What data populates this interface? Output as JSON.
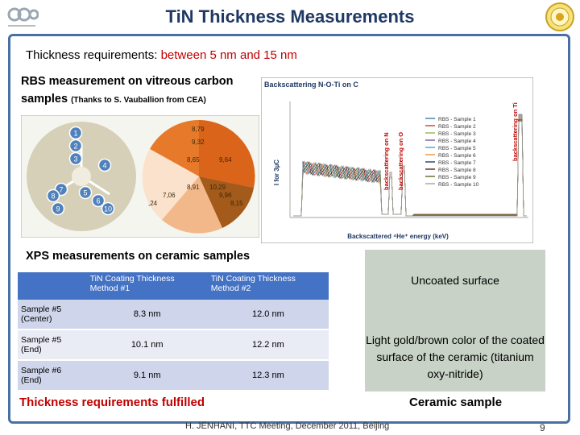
{
  "slide": {
    "title": "TiN Thickness Measurements",
    "requirement_prefix": "Thickness requirements: ",
    "requirement_value": "between 5 nm and 15 nm",
    "rbs_heading": "RBS measurement on vitreous carbon samples",
    "rbs_credit": "(Thanks to S. Vauballion from CEA)",
    "xps_heading": "XPS measurements on ceramic samples",
    "fulfilled": "Thickness requirements fulfilled",
    "footer": "H. JENHANI, TTC Meeting, December 2011, Beijing",
    "page": "9"
  },
  "sample_diagram": {
    "positions": [
      "1",
      "2",
      "3",
      "4",
      "5",
      "6",
      "7",
      "8",
      "9",
      "10"
    ],
    "thickness_labels": [
      "8,79",
      "9,32",
      "8,65",
      "9,64",
      "8,91",
      "10,29",
      "7,06",
      "9,96",
      ",24",
      "8,15"
    ]
  },
  "rbs_chart": {
    "title": "Backscattering N-O-Ti on C",
    "ylabel": "I for 3µC",
    "xlabel": "Backscattered ⁴He⁺ energy (keV)",
    "annot_n": "backscattering on N",
    "annot_o": "backscattering on O",
    "annot_ti": "backscattering on Ti",
    "legend": [
      "RBS - Sample 1",
      "RBS - Sample 2",
      "RBS - Sample 3",
      "RBS - Sample 4",
      "RBS - Sample 5",
      "RBS - Sample 6",
      "RBS - Sample 7",
      "RBS - Sample 8",
      "RBS - Sample 9",
      "RBS - Sample 10"
    ],
    "legend_colors": [
      "#4f81bd",
      "#c0504d",
      "#9bbb59",
      "#8064a2",
      "#4bacc6",
      "#f79646",
      "#2c4d75",
      "#772c2a",
      "#5f7530",
      "#a9a9a9"
    ]
  },
  "xps_table": {
    "headers": [
      "",
      "TiN Coating Thickness Method #1",
      "TiN Coating Thickness Method #2"
    ],
    "rows": [
      {
        "sample": "Sample #5 (Center)",
        "m1": "8.3 nm",
        "m2": "12.0 nm"
      },
      {
        "sample": "Sample #5 (End)",
        "m1": "10.1 nm",
        "m2": "12.2 nm"
      },
      {
        "sample": "Sample #6 (End)",
        "m1": "9.1 nm",
        "m2": "12.3 nm"
      }
    ]
  },
  "ceramic_photo": {
    "top_text": "Uncoated surface",
    "bottom_text": "Light gold/brown color of the coated surface of the ceramic (titanium oxy-nitride)",
    "caption": "Ceramic sample"
  }
}
